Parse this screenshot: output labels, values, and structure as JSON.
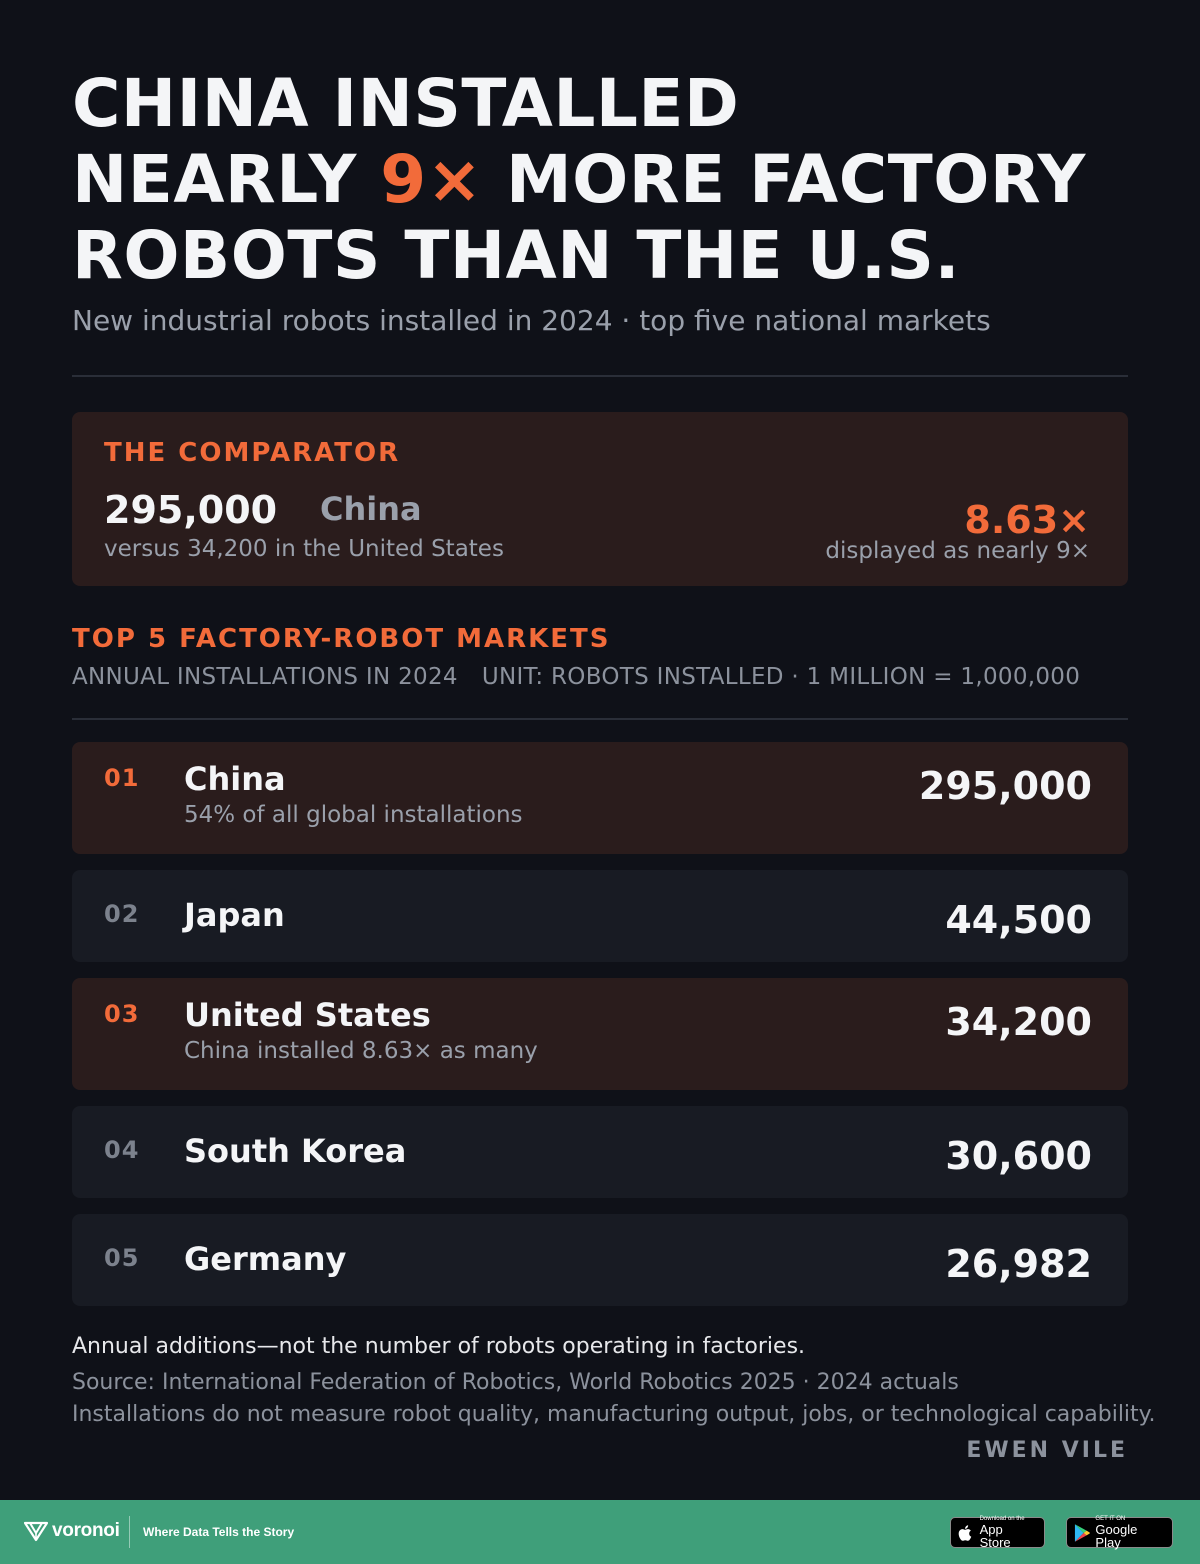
{
  "headline": {
    "line1": "CHINA INSTALLED",
    "line2_pre": "NEARLY ",
    "line2_accent": "9×",
    "line2_post": " MORE FACTORY",
    "line3": "ROBOTS THAN THE U.S."
  },
  "subtitle": "New industrial robots installed in 2024 · top five national markets",
  "comparator": {
    "kicker": "THE COMPARATOR",
    "value": "295,000",
    "country": "China",
    "note": "versus 34,200 in the United States",
    "ratio": "8.63×",
    "ratio_note": "displayed as nearly 9×"
  },
  "section": {
    "title": "TOP 5 FACTORY-ROBOT MARKETS",
    "meta_left": "ANNUAL INSTALLATIONS IN 2024",
    "meta_right": "UNIT: ROBOTS INSTALLED · 1 MILLION = 1,000,000"
  },
  "chart_data": {
    "type": "table",
    "title": "TOP 5 FACTORY-ROBOT MARKETS",
    "columns": [
      "rank",
      "country",
      "note",
      "value"
    ],
    "rows": [
      {
        "rank": "01",
        "country": "China",
        "note": "54% of all global installations",
        "value": 295000,
        "value_label": "295,000",
        "highlight": true
      },
      {
        "rank": "02",
        "country": "Japan",
        "note": "",
        "value": 44500,
        "value_label": "44,500",
        "highlight": false
      },
      {
        "rank": "03",
        "country": "United States",
        "note": "China installed 8.63× as many",
        "value": 34200,
        "value_label": "34,200",
        "highlight": true
      },
      {
        "rank": "04",
        "country": "South Korea",
        "note": "",
        "value": 30600,
        "value_label": "30,600",
        "highlight": false
      },
      {
        "rank": "05",
        "country": "Germany",
        "note": "",
        "value": 26982,
        "value_label": "26,982",
        "highlight": false
      }
    ]
  },
  "footer": {
    "footnote": "Annual additions—not the number of robots operating in factories.",
    "source": "Source: International Federation of Robotics, World Robotics 2025 · 2024 actuals",
    "caveat": "Installations do not measure robot quality, manufacturing output, jobs, or technological capability.",
    "author": "EWEN VILE"
  },
  "brand": {
    "name": "voronoi",
    "tagline": "Where Data Tells the Story",
    "appstore_small": "Download on the",
    "appstore_big": "App Store",
    "googleplay_small": "GET IT ON",
    "googleplay_big": "Google Play",
    "icons": [
      "voronoi-logo-icon",
      "apple-icon",
      "google-play-icon"
    ]
  },
  "colors": {
    "background": "#0f1118",
    "accent": "#f26b3a",
    "highlight_row": "#2a1c1c",
    "plain_row": "#181b23",
    "footer_band": "#3f9f7a"
  }
}
